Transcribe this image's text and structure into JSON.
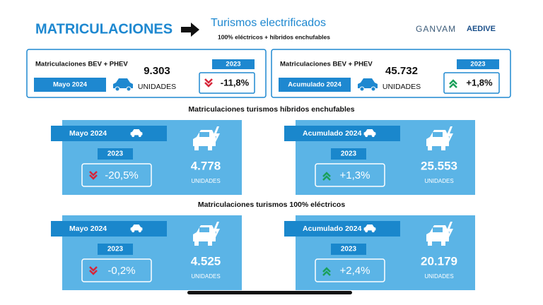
{
  "header": {
    "title": "MATRICULACIONES",
    "subtitle": "Turismos electrificados",
    "note": "100% eléctricos + híbridos enchufables",
    "logos": [
      "GANVAM",
      "AEDIVE"
    ]
  },
  "summary": [
    {
      "label": "Matriculaciones BEV + PHEV",
      "period": "Mayo 2024",
      "value": "9.303",
      "unit": "UNIDADES",
      "compare_year": "2023",
      "change": "-11,8%",
      "trend": "down"
    },
    {
      "label": "Matriculaciones BEV + PHEV",
      "period": "Acumulado 2024",
      "value": "45.732",
      "unit": "UNIDADES",
      "compare_year": "2023",
      "change": "+1,8%",
      "trend": "up"
    }
  ],
  "sections": [
    {
      "title": "Matriculaciones turismos híbridos enchufables",
      "panels": [
        {
          "period": "Mayo 2024",
          "value": "4.778",
          "unit": "UNIDADES",
          "compare_year": "2023",
          "change": "-20,5%",
          "trend": "down"
        },
        {
          "period": "Acumulado 2024",
          "value": "25.553",
          "unit": "UNIDADES",
          "compare_year": "2023",
          "change": "+1,3%",
          "trend": "up"
        }
      ]
    },
    {
      "title": "Matriculaciones turismos 100% eléctricos",
      "panels": [
        {
          "period": "Mayo 2024",
          "value": "4.525",
          "unit": "UNIDADES",
          "compare_year": "2023",
          "change": "-0,2%",
          "trend": "down"
        },
        {
          "period": "Acumulado 2024",
          "value": "20.179",
          "unit": "UNIDADES",
          "compare_year": "2023",
          "change": "+2,4%",
          "trend": "up"
        }
      ]
    }
  ]
}
